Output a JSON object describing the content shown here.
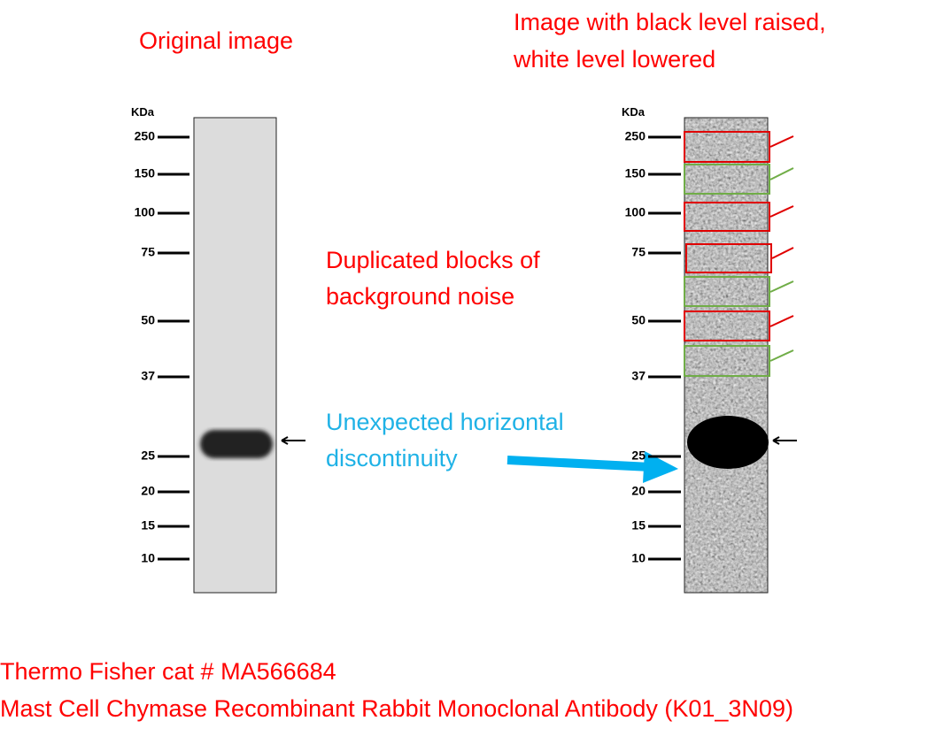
{
  "left_panel": {
    "title": "Original image",
    "unit": "KDa",
    "markers": [
      "250",
      "150",
      "100",
      "75",
      "50",
      "37",
      "25",
      "20",
      "15",
      "10"
    ]
  },
  "right_panel": {
    "title_lines": [
      "Image with black level raised,",
      "white level lowered"
    ],
    "unit": "KDa",
    "markers": [
      "250",
      "150",
      "100",
      "75",
      "50",
      "37",
      "25",
      "20",
      "15",
      "10"
    ]
  },
  "annotations": {
    "duplicated": [
      "Duplicated blocks of",
      "background noise"
    ],
    "discontinuity": [
      "Unexpected horizontal",
      "discontinuity"
    ]
  },
  "caption": [
    "Thermo Fisher cat # MA566684",
    "Mast Cell Chymase Recombinant Rabbit Monoclonal Antibody (K01_3N09)"
  ]
}
